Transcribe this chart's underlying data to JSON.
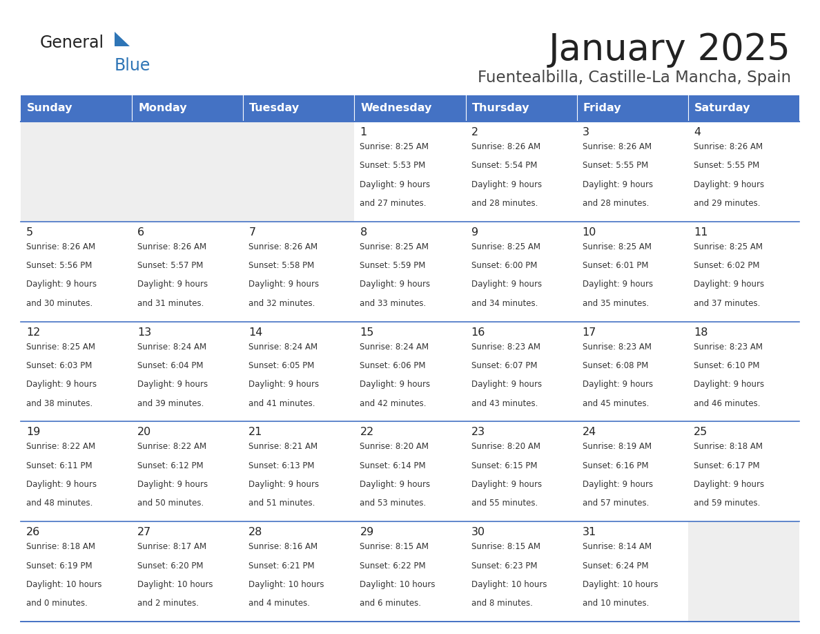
{
  "title": "January 2025",
  "subtitle": "Fuentealbilla, Castille-La Mancha, Spain",
  "days_of_week": [
    "Sunday",
    "Monday",
    "Tuesday",
    "Wednesday",
    "Thursday",
    "Friday",
    "Saturday"
  ],
  "header_bg": "#4472C4",
  "header_text_color": "#FFFFFF",
  "cell_bg_white": "#FFFFFF",
  "cell_bg_gray": "#EEEEEE",
  "separator_color": "#4472C4",
  "day_number_color": "#222222",
  "info_text_color": "#333333",
  "title_color": "#222222",
  "subtitle_color": "#444444",
  "logo_general_color": "#222222",
  "logo_blue_color": "#2E75B6",
  "calendar_data": [
    {
      "day": 1,
      "row": 0,
      "col": 3,
      "sunrise": "8:25 AM",
      "sunset": "5:53 PM",
      "daylight_hours": 9,
      "daylight_minutes": 27
    },
    {
      "day": 2,
      "row": 0,
      "col": 4,
      "sunrise": "8:26 AM",
      "sunset": "5:54 PM",
      "daylight_hours": 9,
      "daylight_minutes": 28
    },
    {
      "day": 3,
      "row": 0,
      "col": 5,
      "sunrise": "8:26 AM",
      "sunset": "5:55 PM",
      "daylight_hours": 9,
      "daylight_minutes": 28
    },
    {
      "day": 4,
      "row": 0,
      "col": 6,
      "sunrise": "8:26 AM",
      "sunset": "5:55 PM",
      "daylight_hours": 9,
      "daylight_minutes": 29
    },
    {
      "day": 5,
      "row": 1,
      "col": 0,
      "sunrise": "8:26 AM",
      "sunset": "5:56 PM",
      "daylight_hours": 9,
      "daylight_minutes": 30
    },
    {
      "day": 6,
      "row": 1,
      "col": 1,
      "sunrise": "8:26 AM",
      "sunset": "5:57 PM",
      "daylight_hours": 9,
      "daylight_minutes": 31
    },
    {
      "day": 7,
      "row": 1,
      "col": 2,
      "sunrise": "8:26 AM",
      "sunset": "5:58 PM",
      "daylight_hours": 9,
      "daylight_minutes": 32
    },
    {
      "day": 8,
      "row": 1,
      "col": 3,
      "sunrise": "8:25 AM",
      "sunset": "5:59 PM",
      "daylight_hours": 9,
      "daylight_minutes": 33
    },
    {
      "day": 9,
      "row": 1,
      "col": 4,
      "sunrise": "8:25 AM",
      "sunset": "6:00 PM",
      "daylight_hours": 9,
      "daylight_minutes": 34
    },
    {
      "day": 10,
      "row": 1,
      "col": 5,
      "sunrise": "8:25 AM",
      "sunset": "6:01 PM",
      "daylight_hours": 9,
      "daylight_minutes": 35
    },
    {
      "day": 11,
      "row": 1,
      "col": 6,
      "sunrise": "8:25 AM",
      "sunset": "6:02 PM",
      "daylight_hours": 9,
      "daylight_minutes": 37
    },
    {
      "day": 12,
      "row": 2,
      "col": 0,
      "sunrise": "8:25 AM",
      "sunset": "6:03 PM",
      "daylight_hours": 9,
      "daylight_minutes": 38
    },
    {
      "day": 13,
      "row": 2,
      "col": 1,
      "sunrise": "8:24 AM",
      "sunset": "6:04 PM",
      "daylight_hours": 9,
      "daylight_minutes": 39
    },
    {
      "day": 14,
      "row": 2,
      "col": 2,
      "sunrise": "8:24 AM",
      "sunset": "6:05 PM",
      "daylight_hours": 9,
      "daylight_minutes": 41
    },
    {
      "day": 15,
      "row": 2,
      "col": 3,
      "sunrise": "8:24 AM",
      "sunset": "6:06 PM",
      "daylight_hours": 9,
      "daylight_minutes": 42
    },
    {
      "day": 16,
      "row": 2,
      "col": 4,
      "sunrise": "8:23 AM",
      "sunset": "6:07 PM",
      "daylight_hours": 9,
      "daylight_minutes": 43
    },
    {
      "day": 17,
      "row": 2,
      "col": 5,
      "sunrise": "8:23 AM",
      "sunset": "6:08 PM",
      "daylight_hours": 9,
      "daylight_minutes": 45
    },
    {
      "day": 18,
      "row": 2,
      "col": 6,
      "sunrise": "8:23 AM",
      "sunset": "6:10 PM",
      "daylight_hours": 9,
      "daylight_minutes": 46
    },
    {
      "day": 19,
      "row": 3,
      "col": 0,
      "sunrise": "8:22 AM",
      "sunset": "6:11 PM",
      "daylight_hours": 9,
      "daylight_minutes": 48
    },
    {
      "day": 20,
      "row": 3,
      "col": 1,
      "sunrise": "8:22 AM",
      "sunset": "6:12 PM",
      "daylight_hours": 9,
      "daylight_minutes": 50
    },
    {
      "day": 21,
      "row": 3,
      "col": 2,
      "sunrise": "8:21 AM",
      "sunset": "6:13 PM",
      "daylight_hours": 9,
      "daylight_minutes": 51
    },
    {
      "day": 22,
      "row": 3,
      "col": 3,
      "sunrise": "8:20 AM",
      "sunset": "6:14 PM",
      "daylight_hours": 9,
      "daylight_minutes": 53
    },
    {
      "day": 23,
      "row": 3,
      "col": 4,
      "sunrise": "8:20 AM",
      "sunset": "6:15 PM",
      "daylight_hours": 9,
      "daylight_minutes": 55
    },
    {
      "day": 24,
      "row": 3,
      "col": 5,
      "sunrise": "8:19 AM",
      "sunset": "6:16 PM",
      "daylight_hours": 9,
      "daylight_minutes": 57
    },
    {
      "day": 25,
      "row": 3,
      "col": 6,
      "sunrise": "8:18 AM",
      "sunset": "6:17 PM",
      "daylight_hours": 9,
      "daylight_minutes": 59
    },
    {
      "day": 26,
      "row": 4,
      "col": 0,
      "sunrise": "8:18 AM",
      "sunset": "6:19 PM",
      "daylight_hours": 10,
      "daylight_minutes": 0
    },
    {
      "day": 27,
      "row": 4,
      "col": 1,
      "sunrise": "8:17 AM",
      "sunset": "6:20 PM",
      "daylight_hours": 10,
      "daylight_minutes": 2
    },
    {
      "day": 28,
      "row": 4,
      "col": 2,
      "sunrise": "8:16 AM",
      "sunset": "6:21 PM",
      "daylight_hours": 10,
      "daylight_minutes": 4
    },
    {
      "day": 29,
      "row": 4,
      "col": 3,
      "sunrise": "8:15 AM",
      "sunset": "6:22 PM",
      "daylight_hours": 10,
      "daylight_minutes": 6
    },
    {
      "day": 30,
      "row": 4,
      "col": 4,
      "sunrise": "8:15 AM",
      "sunset": "6:23 PM",
      "daylight_hours": 10,
      "daylight_minutes": 8
    },
    {
      "day": 31,
      "row": 4,
      "col": 5,
      "sunrise": "8:14 AM",
      "sunset": "6:24 PM",
      "daylight_hours": 10,
      "daylight_minutes": 10
    }
  ]
}
